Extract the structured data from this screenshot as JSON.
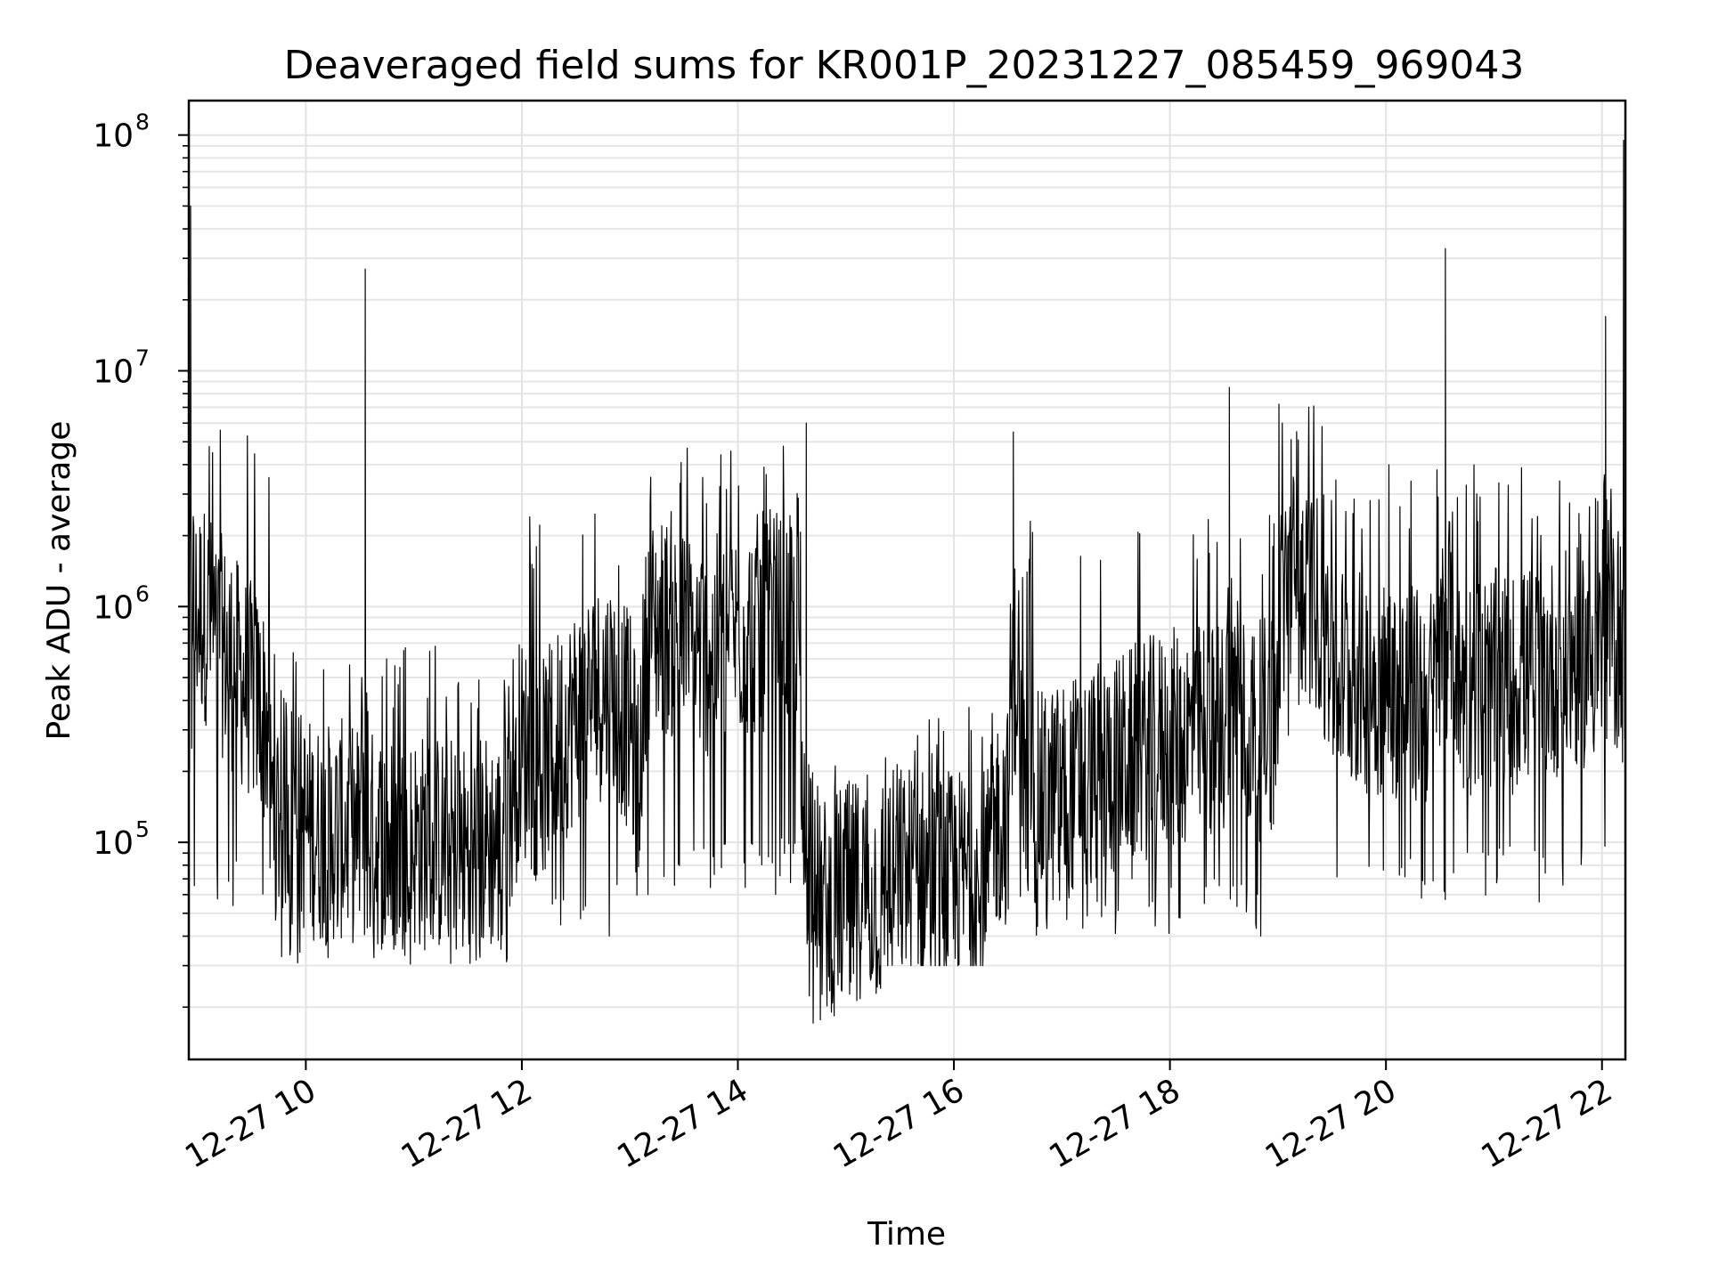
{
  "chart_data": {
    "type": "line",
    "title": "Deaveraged field sums for KR001P_20231227_085459_969043",
    "xlabel": "Time",
    "ylabel": "Peak ADU - average",
    "yscale": "log",
    "grid": true,
    "line_color": "#000000",
    "grid_color": "#e3e3e3",
    "xlim": [
      "2023-12-27 08:55",
      "2023-12-27 22:13"
    ],
    "ylim": [
      12000,
      140000000
    ],
    "x_ticks": [
      {
        "value": "2023-12-27 10:00",
        "label": "12-27 10"
      },
      {
        "value": "2023-12-27 12:00",
        "label": "12-27 12"
      },
      {
        "value": "2023-12-27 14:00",
        "label": "12-27 14"
      },
      {
        "value": "2023-12-27 16:00",
        "label": "12-27 16"
      },
      {
        "value": "2023-12-27 18:00",
        "label": "12-27 18"
      },
      {
        "value": "2023-12-27 20:00",
        "label": "12-27 20"
      },
      {
        "value": "2023-12-27 22:00",
        "label": "12-27 22"
      }
    ],
    "y_ticks": [
      {
        "value": 100000,
        "base": "10",
        "exp": "5"
      },
      {
        "value": 1000000,
        "base": "10",
        "exp": "6"
      },
      {
        "value": 10000000,
        "base": "10",
        "exp": "7"
      },
      {
        "value": 100000000,
        "base": "10",
        "exp": "8"
      }
    ],
    "series": [
      {
        "x": [
          "2023-12-27 08:55",
          "2023-12-27 08:56",
          "2023-12-27 08:58",
          "2023-12-27 09:00",
          "2023-12-27 09:05",
          "2023-12-27 09:10",
          "2023-12-27 09:15",
          "2023-12-27 09:20",
          "2023-12-27 09:25",
          "2023-12-27 09:30",
          "2023-12-27 09:35",
          "2023-12-27 09:40",
          "2023-12-27 09:45",
          "2023-12-27 09:50",
          "2023-12-27 10:00",
          "2023-12-27 10:10",
          "2023-12-27 10:20",
          "2023-12-27 10:30",
          "2023-12-27 10:33",
          "2023-12-27 10:35",
          "2023-12-27 10:40",
          "2023-12-27 10:50",
          "2023-12-27 11:00",
          "2023-12-27 11:10",
          "2023-12-27 11:20",
          "2023-12-27 11:30",
          "2023-12-27 11:40",
          "2023-12-27 11:48",
          "2023-12-27 11:50",
          "2023-12-27 12:00",
          "2023-12-27 12:10",
          "2023-12-27 12:20",
          "2023-12-27 12:30",
          "2023-12-27 12:40",
          "2023-12-27 12:50",
          "2023-12-27 13:00",
          "2023-12-27 13:05",
          "2023-12-27 13:10",
          "2023-12-27 13:20",
          "2023-12-27 13:30",
          "2023-12-27 13:40",
          "2023-12-27 13:50",
          "2023-12-27 14:00",
          "2023-12-27 14:10",
          "2023-12-27 14:20",
          "2023-12-27 14:30",
          "2023-12-27 14:35",
          "2023-12-27 14:38",
          "2023-12-27 14:45",
          "2023-12-27 14:50",
          "2023-12-27 15:00",
          "2023-12-27 15:10",
          "2023-12-27 15:20",
          "2023-12-27 15:30",
          "2023-12-27 15:40",
          "2023-12-27 15:50",
          "2023-12-27 16:00",
          "2023-12-27 16:10",
          "2023-12-27 16:20",
          "2023-12-27 16:30",
          "2023-12-27 16:33",
          "2023-12-27 16:40",
          "2023-12-27 16:50",
          "2023-12-27 17:00",
          "2023-12-27 17:10",
          "2023-12-27 17:20",
          "2023-12-27 17:30",
          "2023-12-27 17:40",
          "2023-12-27 17:50",
          "2023-12-27 18:00",
          "2023-12-27 18:10",
          "2023-12-27 18:20",
          "2023-12-27 18:30",
          "2023-12-27 18:33",
          "2023-12-27 18:40",
          "2023-12-27 18:50",
          "2023-12-27 19:00",
          "2023-12-27 19:05",
          "2023-12-27 19:10",
          "2023-12-27 19:15",
          "2023-12-27 19:20",
          "2023-12-27 19:30",
          "2023-12-27 19:40",
          "2023-12-27 19:50",
          "2023-12-27 20:00",
          "2023-12-27 20:10",
          "2023-12-27 20:20",
          "2023-12-27 20:30",
          "2023-12-27 20:33",
          "2023-12-27 20:40",
          "2023-12-27 20:50",
          "2023-12-27 21:00",
          "2023-12-27 21:10",
          "2023-12-27 21:20",
          "2023-12-27 21:30",
          "2023-12-27 21:40",
          "2023-12-27 21:50",
          "2023-12-27 22:00",
          "2023-12-27 22:02",
          "2023-12-27 22:05",
          "2023-12-27 22:10",
          "2023-12-27 22:12",
          "2023-12-27 22:13"
        ],
        "y": [
          300000,
          50000000,
          1500000,
          2000000,
          1800000,
          1200000,
          900000,
          700000,
          500000,
          400000,
          300000,
          200000,
          150000,
          200000,
          120000,
          100000,
          110000,
          100000,
          27000000,
          90000,
          95000,
          80000,
          90000,
          85000,
          80000,
          70000,
          90000,
          80000,
          200000,
          250000,
          150000,
          300000,
          500000,
          700000,
          900000,
          400000,
          120000,
          1500000,
          1600000,
          1200000,
          1000000,
          1100000,
          1400000,
          1600000,
          1800000,
          1500000,
          1300000,
          6000000,
          40000,
          50000,
          60000,
          70000,
          55000,
          60000,
          65000,
          50000,
          55000,
          60000,
          55000,
          70000,
          5500000,
          80000,
          90000,
          110000,
          130000,
          150000,
          180000,
          220000,
          260000,
          300000,
          320000,
          350000,
          380000,
          8500000,
          400000,
          350000,
          450000,
          1800000,
          1500000,
          1300000,
          1000000,
          800000,
          700000,
          600000,
          550000,
          500000,
          450000,
          500000,
          33000000,
          550000,
          600000,
          650000,
          600000,
          700000,
          800000,
          900000,
          1000000,
          1200000,
          17000000,
          1300000,
          1400000,
          95000000,
          1200000
        ],
        "fluctuation_range": [
          {
            "from": "2023-12-27 08:55",
            "to": "2023-12-27 09:40",
            "min": 50000,
            "max": 7000000
          },
          {
            "from": "2023-12-27 09:40",
            "to": "2023-12-27 11:55",
            "min": 30000,
            "max": 700000
          },
          {
            "from": "2023-12-27 11:55",
            "to": "2023-12-27 13:05",
            "min": 40000,
            "max": 2500000
          },
          {
            "from": "2023-12-27 13:05",
            "to": "2023-12-27 14:35",
            "min": 60000,
            "max": 5000000
          },
          {
            "from": "2023-12-27 14:35",
            "to": "2023-12-27 15:20",
            "min": 17000,
            "max": 350000
          },
          {
            "from": "2023-12-27 15:20",
            "to": "2023-12-27 16:20",
            "min": 30000,
            "max": 400000
          },
          {
            "from": "2023-12-27 16:20",
            "to": "2023-12-27 19:00",
            "min": 40000,
            "max": 2500000
          },
          {
            "from": "2023-12-27 19:00",
            "to": "2023-12-27 19:30",
            "min": 250000,
            "max": 8000000
          },
          {
            "from": "2023-12-27 19:30",
            "to": "2023-12-27 22:13",
            "min": 55000,
            "max": 4000000
          }
        ]
      }
    ]
  }
}
